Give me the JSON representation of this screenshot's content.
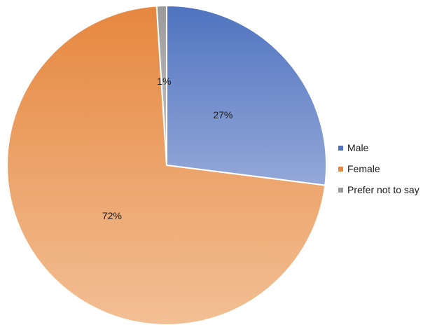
{
  "chart_data": {
    "type": "pie",
    "title": "",
    "slices": [
      {
        "label": "Male",
        "value": 27,
        "display": "27%",
        "color_start": "#4f73c0",
        "color_end": "#94a8d8"
      },
      {
        "label": "Female",
        "value": 72,
        "display": "72%",
        "color_start": "#e6873f",
        "color_end": "#f2bf94"
      },
      {
        "label": "Prefer not to say",
        "value": 1,
        "display": "1%",
        "color_start": "#9a9a9a",
        "color_end": "#c9c9c9"
      }
    ],
    "legend_position": "right"
  }
}
